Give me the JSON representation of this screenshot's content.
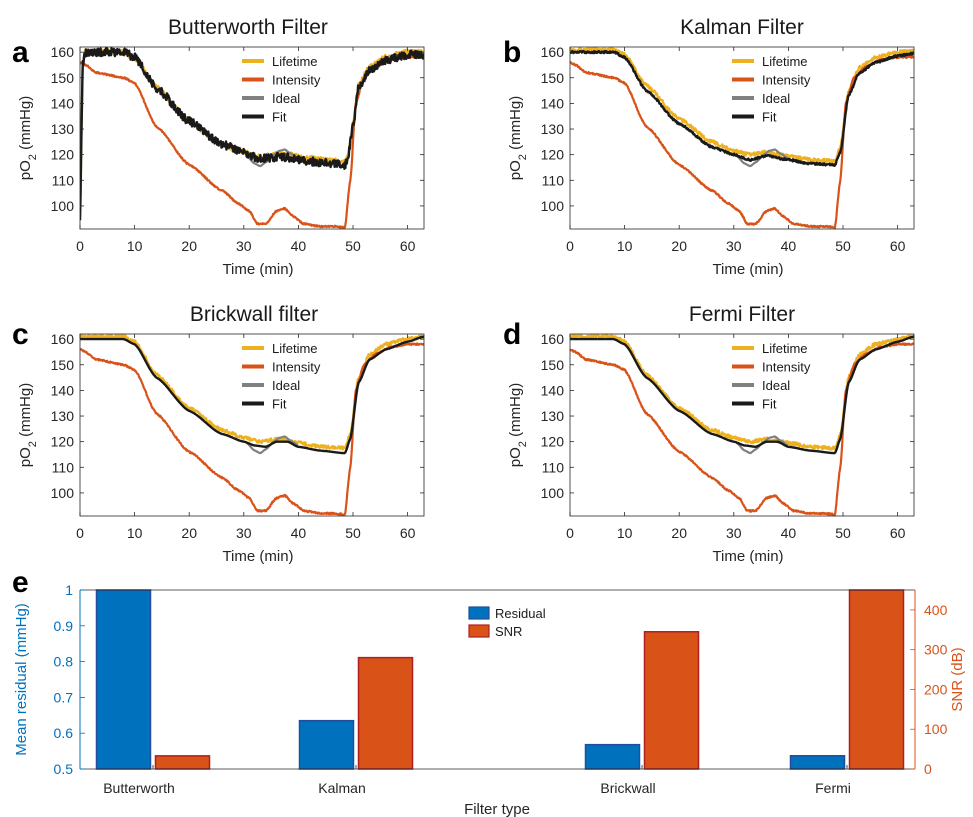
{
  "chart_data": [
    {
      "panel": "a",
      "type": "line",
      "title": "Butterworth Filter",
      "xlabel": "Time (min)",
      "ylabel": "pO",
      "ylabel_sub": "2",
      "ylabel_suffix": " (mmHg)",
      "xlim": [
        0,
        63
      ],
      "ylim": [
        91,
        162
      ],
      "xticks": [
        0,
        10,
        20,
        30,
        40,
        50,
        60
      ],
      "yticks": [
        100,
        110,
        120,
        130,
        140,
        150,
        160
      ],
      "legend": [
        "Lifetime",
        "Intensity",
        "Ideal",
        "Fit"
      ],
      "legend_position": "top-right",
      "series": [
        {
          "name": "Lifetime",
          "color": "#EDB120",
          "noise": 1.2,
          "x": [
            0,
            0.5,
            1,
            8,
            10,
            14,
            20,
            26,
            30,
            31,
            33,
            36,
            38,
            40,
            44,
            48.5,
            49,
            50,
            51,
            53,
            56,
            60,
            63
          ],
          "y": [
            96,
            155,
            160,
            160,
            158,
            146,
            133,
            124,
            121,
            120,
            119,
            120,
            120,
            119,
            118,
            117,
            119,
            132,
            147,
            154,
            158,
            160,
            160
          ]
        },
        {
          "name": "Intensity",
          "color": "#D95319",
          "noise": 0.3,
          "x": [
            0,
            1,
            3,
            8,
            10,
            14,
            20,
            26,
            29,
            31,
            32.5,
            34,
            36,
            37.5,
            39,
            41,
            44,
            47,
            48.5,
            49.5,
            50.5,
            52,
            54,
            57,
            60,
            63
          ],
          "y": [
            156,
            155,
            152,
            150,
            148,
            131,
            116,
            106,
            101,
            98,
            93,
            93,
            98,
            99,
            96,
            93,
            92,
            92,
            91.5,
            110,
            140,
            150,
            154,
            157,
            158,
            158
          ]
        },
        {
          "name": "Ideal",
          "color": "#808080",
          "noise": 0,
          "x": [
            30.5,
            32,
            33,
            34,
            35.5,
            36.5,
            37.5,
            38.5,
            40
          ],
          "y": [
            119.5,
            116.5,
            115.5,
            117,
            120,
            121.5,
            122,
            120.5,
            118.5
          ]
        },
        {
          "name": "Fit",
          "color": "#1a1a1a",
          "noise": 1.6,
          "x": [
            0,
            0.5,
            1,
            8,
            10,
            14,
            20,
            26,
            30,
            31,
            33,
            36,
            38,
            40,
            44,
            48.5,
            49,
            50,
            51,
            53,
            56,
            60,
            63
          ],
          "y": [
            96,
            155,
            160,
            160,
            158,
            146,
            133,
            124,
            121,
            119.5,
            118.5,
            119,
            119,
            118,
            117,
            116,
            118,
            131,
            146,
            153,
            157,
            159,
            159
          ]
        }
      ]
    },
    {
      "panel": "b",
      "type": "line",
      "title": "Kalman Filter",
      "xlabel": "Time (min)",
      "ylabel": "pO",
      "ylabel_sub": "2",
      "ylabel_suffix": " (mmHg)",
      "xlim": [
        0,
        63
      ],
      "ylim": [
        91,
        162
      ],
      "xticks": [
        0,
        10,
        20,
        30,
        40,
        50,
        60
      ],
      "yticks": [
        100,
        110,
        120,
        130,
        140,
        150,
        160
      ],
      "legend": [
        "Lifetime",
        "Intensity",
        "Ideal",
        "Fit"
      ],
      "legend_position": "top-right",
      "series": [
        {
          "name": "Lifetime",
          "color": "#EDB120",
          "noise": 0.7,
          "x": [
            0,
            8,
            10,
            14,
            20,
            26,
            30,
            33,
            36,
            40,
            44,
            48.5,
            49.5,
            51,
            53,
            56,
            60,
            63
          ],
          "y": [
            161,
            161,
            159,
            147,
            134,
            125,
            121.5,
            120,
            121,
            119.5,
            118,
            117.5,
            123,
            145,
            154,
            158,
            160,
            160.5
          ]
        },
        {
          "name": "Intensity",
          "color": "#D95319",
          "noise": 0.3,
          "x": [
            0,
            1,
            3,
            8,
            10,
            14,
            20,
            26,
            29,
            31,
            32.5,
            34,
            36,
            37.5,
            39,
            41,
            44,
            47,
            48.5,
            49.5,
            50.5,
            52,
            54,
            57,
            60,
            63
          ],
          "y": [
            156,
            155,
            152,
            150,
            148,
            131,
            116,
            106,
            101,
            98,
            93,
            93,
            98,
            99,
            96,
            93,
            92,
            92,
            91.5,
            110,
            140,
            150,
            154,
            157,
            158,
            158
          ]
        },
        {
          "name": "Ideal",
          "color": "#808080",
          "noise": 0,
          "x": [
            30.5,
            32,
            33,
            34,
            35.5,
            36.5,
            37.5,
            38.5,
            40
          ],
          "y": [
            119.5,
            116.5,
            115.5,
            117,
            120,
            121.5,
            122,
            120.5,
            118.5
          ]
        },
        {
          "name": "Fit",
          "color": "#1a1a1a",
          "noise": 0.4,
          "x": [
            0,
            8,
            10,
            14,
            20,
            26,
            30,
            33,
            36,
            40,
            44,
            48.5,
            49.5,
            51,
            53,
            56,
            60,
            63
          ],
          "y": [
            160,
            160,
            158,
            145,
            132,
            123,
            120,
            118,
            119.5,
            118,
            116.5,
            116,
            121,
            143,
            152,
            156,
            158.5,
            159.5
          ]
        }
      ]
    },
    {
      "panel": "c",
      "type": "line",
      "title": "Brickwall filter",
      "xlabel": "Time (min)",
      "ylabel": "pO",
      "ylabel_sub": "2",
      "ylabel_suffix": " (mmHg)",
      "xlim": [
        0,
        63
      ],
      "ylim": [
        91,
        162
      ],
      "xticks": [
        0,
        10,
        20,
        30,
        40,
        50,
        60
      ],
      "yticks": [
        100,
        110,
        120,
        130,
        140,
        150,
        160
      ],
      "legend": [
        "Lifetime",
        "Intensity",
        "Ideal",
        "Fit"
      ],
      "legend_position": "top-right",
      "series": [
        {
          "name": "Lifetime",
          "color": "#EDB120",
          "noise": 0.7,
          "x": [
            0,
            8,
            10,
            14,
            20,
            26,
            30,
            33,
            36,
            40,
            44,
            48.5,
            49.5,
            51,
            53,
            56,
            60,
            63
          ],
          "y": [
            161,
            161,
            159,
            146,
            133,
            124.5,
            121.5,
            120,
            121,
            119.5,
            118,
            117.5,
            123,
            145,
            154,
            158,
            160,
            161
          ]
        },
        {
          "name": "Intensity",
          "color": "#D95319",
          "noise": 0.3,
          "x": [
            0,
            1,
            3,
            8,
            10,
            14,
            20,
            26,
            29,
            31,
            32.5,
            34,
            36,
            37.5,
            39,
            41,
            44,
            47,
            48.5,
            49.5,
            50.5,
            52,
            54,
            57,
            60,
            63
          ],
          "y": [
            156,
            155,
            152,
            150,
            148,
            131,
            116,
            106,
            101,
            98,
            93,
            93,
            98,
            99,
            96,
            93,
            92,
            92,
            91.5,
            110,
            140,
            150,
            154,
            157,
            158,
            158
          ]
        },
        {
          "name": "Ideal",
          "color": "#808080",
          "noise": 0,
          "x": [
            30.5,
            32,
            33,
            34,
            35.5,
            36.5,
            37.5,
            38.5,
            40
          ],
          "y": [
            119.5,
            116.5,
            115.5,
            117,
            120,
            121.5,
            122,
            120.5,
            118.5
          ]
        },
        {
          "name": "Fit",
          "color": "#1a1a1a",
          "noise": 0,
          "x": [
            0,
            8,
            10,
            14,
            20,
            26,
            30,
            32,
            34,
            36,
            38,
            40,
            44,
            48.5,
            49.5,
            51,
            53,
            56,
            60,
            63
          ],
          "y": [
            160,
            160,
            158,
            145,
            132,
            123,
            120,
            118.5,
            118,
            120,
            120,
            118,
            116.5,
            115.5,
            121,
            143,
            152,
            156,
            159,
            161
          ]
        }
      ]
    },
    {
      "panel": "d",
      "type": "line",
      "title": "Fermi Filter",
      "xlabel": "Time (min)",
      "ylabel": "pO",
      "ylabel_sub": "2",
      "ylabel_suffix": " (mmHg)",
      "xlim": [
        0,
        63
      ],
      "ylim": [
        91,
        162
      ],
      "xticks": [
        0,
        10,
        20,
        30,
        40,
        50,
        60
      ],
      "yticks": [
        100,
        110,
        120,
        130,
        140,
        150,
        160
      ],
      "legend": [
        "Lifetime",
        "Intensity",
        "Ideal",
        "Fit"
      ],
      "legend_position": "top-right",
      "series": [
        {
          "name": "Lifetime",
          "color": "#EDB120",
          "noise": 0.7,
          "x": [
            0,
            8,
            10,
            14,
            20,
            26,
            30,
            33,
            36,
            40,
            44,
            48.5,
            49.5,
            51,
            53,
            56,
            60,
            63
          ],
          "y": [
            161,
            161,
            159,
            146,
            133,
            124.5,
            121.5,
            120,
            121,
            119.5,
            118,
            117.5,
            123,
            145,
            154,
            158,
            160,
            161
          ]
        },
        {
          "name": "Intensity",
          "color": "#D95319",
          "noise": 0.3,
          "x": [
            0,
            1,
            3,
            8,
            10,
            14,
            20,
            26,
            29,
            31,
            32.5,
            34,
            36,
            37.5,
            39,
            41,
            44,
            47,
            48.5,
            49.5,
            50.5,
            52,
            54,
            57,
            60,
            63
          ],
          "y": [
            156,
            155,
            152,
            150,
            148,
            131,
            116,
            106,
            101,
            98,
            93,
            93,
            98,
            99,
            96,
            93,
            92,
            92,
            91.5,
            110,
            140,
            150,
            154,
            157,
            158,
            158
          ]
        },
        {
          "name": "Ideal",
          "color": "#808080",
          "noise": 0,
          "x": [
            30.5,
            32,
            33,
            34,
            35.5,
            36.5,
            37.5,
            38.5,
            40
          ],
          "y": [
            119.5,
            116.5,
            115.5,
            117,
            120,
            121.5,
            122,
            120.5,
            118.5
          ]
        },
        {
          "name": "Fit",
          "color": "#1a1a1a",
          "noise": 0,
          "x": [
            0,
            8,
            10,
            14,
            20,
            26,
            30,
            32,
            34,
            36,
            38,
            40,
            44,
            48.5,
            49.5,
            51,
            53,
            56,
            60,
            63
          ],
          "y": [
            160,
            160,
            158,
            145,
            132,
            123,
            120,
            118.5,
            118,
            120,
            120,
            118,
            116.5,
            115.5,
            121,
            143,
            152,
            156,
            159,
            161
          ]
        }
      ]
    },
    {
      "panel": "e",
      "type": "bar",
      "title": "",
      "xlabel": "Filter type",
      "ylabel": "Mean residual (mmHg)",
      "ylabel_right": "SNR (dB)",
      "categories": [
        "Butterworth",
        "Kalman",
        "Brickwall",
        "Fermi"
      ],
      "ylim": [
        0.5,
        1
      ],
      "ylim_right": [
        0,
        450
      ],
      "yticks": [
        0.5,
        0.6,
        0.7,
        0.8,
        0.9,
        1
      ],
      "yticks_right": [
        0,
        100,
        200,
        300,
        400
      ],
      "legend": [
        "Residual",
        "SNR"
      ],
      "legend_position": "top-center",
      "series": [
        {
          "name": "Residual",
          "axis": "left",
          "color": "#0072BD",
          "edge": "#1f4e9a",
          "values": [
            1.0,
            0.635,
            0.568,
            0.537
          ]
        },
        {
          "name": "SNR",
          "axis": "right",
          "color": "#D95319",
          "edge": "#b01e1e",
          "values": [
            33,
            280,
            345,
            450
          ]
        }
      ],
      "left_axis_color": "#0072BD",
      "right_axis_color": "#D95319"
    }
  ]
}
